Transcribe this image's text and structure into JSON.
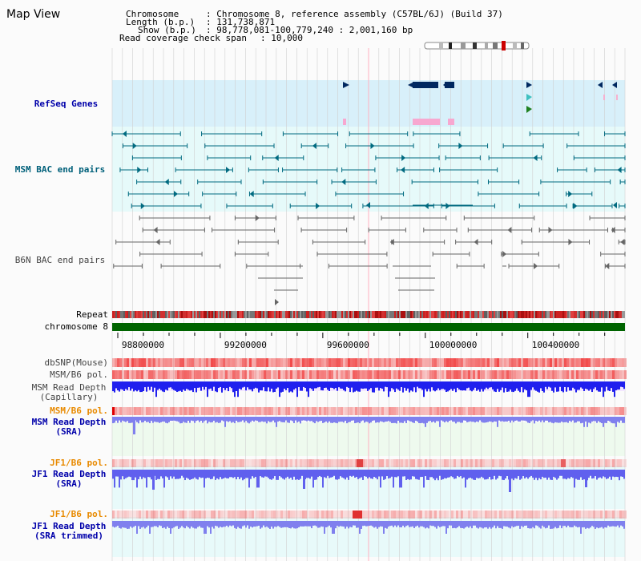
{
  "title": "Map View",
  "info": {
    "chromosome_key": "Chromosome",
    "chromosome_val": ": Chromosome 8, reference assembly (C57BL/6J) (Build 37)",
    "length_key": "Length (b.p.)",
    "length_val": ": 131,738,871",
    "show_key": "Show (b.p.)",
    "show_val": ": 98,778,081-100,779,240 : 2,001,160 bp",
    "coverage_key": "Read coverage check span",
    "coverage_val": ": 10,000"
  },
  "tracks": {
    "refseq": "RefSeq Genes",
    "msm_bac": "MSM BAC end pairs",
    "b6n_bac": "B6N BAC end pairs",
    "repeat": "Repeat",
    "chromosome": "chromosome 8",
    "dbsnp": "dbSNP(Mouse)",
    "msm_b6_pol": "MSM/B6 pol.",
    "msm_depth_cap_1": "MSM Read Depth",
    "msm_depth_cap_2": "(Capillary)",
    "msm_b6_pol_2": "MSM/B6 pol.",
    "msm_depth_sra_1": "MSM Read Depth",
    "msm_depth_sra_2": "(SRA)",
    "jf1_b6_pol": "JF1/B6 pol.",
    "jf1_depth_sra_1": "JF1 Read Depth",
    "jf1_depth_sra_2": "(SRA)",
    "jf1_b6_pol_2": "JF1/B6 pol.",
    "jf1_depth_trim_1": "JF1 Read Depth",
    "jf1_depth_trim_2": "(SRA trimmed)"
  },
  "axis": {
    "range_start": 98778081,
    "range_end": 100779240,
    "ticks": [
      {
        "value": 98800000,
        "label": "98800000"
      },
      {
        "value": 99200000,
        "label": "99200000"
      },
      {
        "value": 99600000,
        "label": "99600000"
      },
      {
        "value": 100000000,
        "label": "100000000"
      },
      {
        "value": 100400000,
        "label": "100400000"
      }
    ]
  },
  "colors": {
    "refseq_bg": "#d8f0fa",
    "msm_bg": "#e6fafa",
    "grid": "#d0d0d0",
    "chrom_bar": "#006400",
    "gene": "#002860",
    "bac_teal": "#006a80",
    "bac_gray": "#666666",
    "dbsnp": "#f06060",
    "msm_depth": "#2020ee",
    "sra_depth": "#8080ee",
    "jf1_depth": "#6060ee"
  }
}
